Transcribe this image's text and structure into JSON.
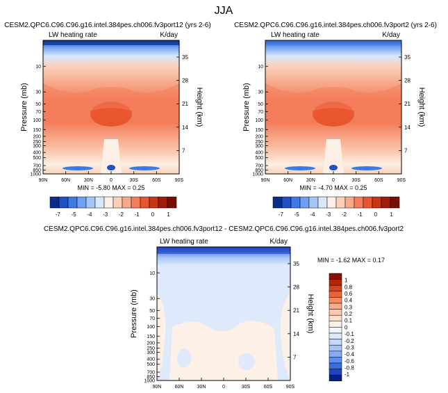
{
  "page_title": "JJA",
  "colors": {
    "lw_scale": [
      "#0a2c8c",
      "#1f4fc4",
      "#3d78e8",
      "#6f9ff2",
      "#a6c6f7",
      "#d9e7fb",
      "#fcefe6",
      "#fbd0b7",
      "#f7a98b",
      "#f47e5c",
      "#e9552f",
      "#c93414",
      "#a11c08",
      "#7a0c00"
    ],
    "diff_scale": [
      "#0a1f86",
      "#1f44c0",
      "#3a6de2",
      "#5f8ff0",
      "#86abf3",
      "#a7c3f6",
      "#c6d8fa",
      "#dfe9fc",
      "#f0f5fe",
      "#fdf0e6",
      "#fbdfcc",
      "#f8c9ad",
      "#f6ac8a",
      "#f38a63",
      "#ec6337",
      "#d9421b",
      "#b12608",
      "#8a0f00"
    ]
  },
  "chart_data": [
    {
      "type": "heatmap",
      "title": "CESM2.QPC6.C96.C96.g16.intel.384pes.ch006.fv3port12 (yrs 2-6)",
      "field_label": "LW heating rate",
      "units": "K/day",
      "ylabel": "Pressure (mb)",
      "y2label": "Height (km)",
      "x_ticks": [
        "90N",
        "60N",
        "30N",
        "0",
        "30S",
        "60S",
        "90S"
      ],
      "y_ticks": [
        "10",
        "30",
        "50",
        "70",
        "100",
        "150",
        "200",
        "250",
        "300",
        "400",
        "500",
        "700",
        "850",
        "1000"
      ],
      "y2_ticks": [
        "35",
        "28",
        "21",
        "14",
        "7"
      ],
      "stats": "MIN = -5.80  MAX =  0.25",
      "colorbar_labels": [
        "-7",
        "-5",
        "-4",
        "-3",
        "-2",
        "-1",
        "0",
        "1"
      ]
    },
    {
      "type": "heatmap",
      "title": "CESM2.QPC6.C96.C96.g16.intel.384pes.ch006.fv3port2 (yrs 2-6)",
      "field_label": "LW heating rate",
      "units": "K/day",
      "ylabel": "Pressure (mb)",
      "y2label": "Height (km)",
      "x_ticks": [
        "90N",
        "60N",
        "30N",
        "0",
        "30S",
        "60S",
        "90S"
      ],
      "y_ticks": [
        "10",
        "30",
        "50",
        "70",
        "100",
        "150",
        "200",
        "250",
        "300",
        "400",
        "500",
        "700",
        "850",
        "1000"
      ],
      "y2_ticks": [
        "35",
        "28",
        "21",
        "14",
        "7"
      ],
      "stats": "MIN = -4.70  MAX =  0.25",
      "colorbar_labels": [
        "-7",
        "-5",
        "-4",
        "-3",
        "-2",
        "-1",
        "0",
        "1"
      ]
    },
    {
      "type": "heatmap",
      "title": "CESM2.QPC6.C96.C96.g16.intel.384pes.ch006.fv3port12 - CESM2.QPC6.C96.C96.g16.intel.384pes.ch006.fv3port2",
      "field_label": "LW heating rate",
      "units": "K/day",
      "ylabel": "Pressure (mb)",
      "y2label": "Height (km)",
      "x_ticks": [
        "90N",
        "60N",
        "30N",
        "0",
        "30S",
        "60S",
        "90S"
      ],
      "y_ticks": [
        "10",
        "30",
        "50",
        "70",
        "100",
        "150",
        "200",
        "250",
        "300",
        "400",
        "500",
        "700",
        "850",
        "1000"
      ],
      "y2_ticks": [
        "35",
        "28",
        "21",
        "14",
        "7"
      ],
      "stats": "MIN = -1.62  MAX =  0.17",
      "colorbar_labels": [
        "1",
        "0.8",
        "0.6",
        "0.4",
        "0.3",
        "0.2",
        "0.1",
        "0",
        "-0.1",
        "-0.2",
        "-0.3",
        "-0.4",
        "-0.6",
        "-0.8",
        "-1"
      ]
    }
  ]
}
